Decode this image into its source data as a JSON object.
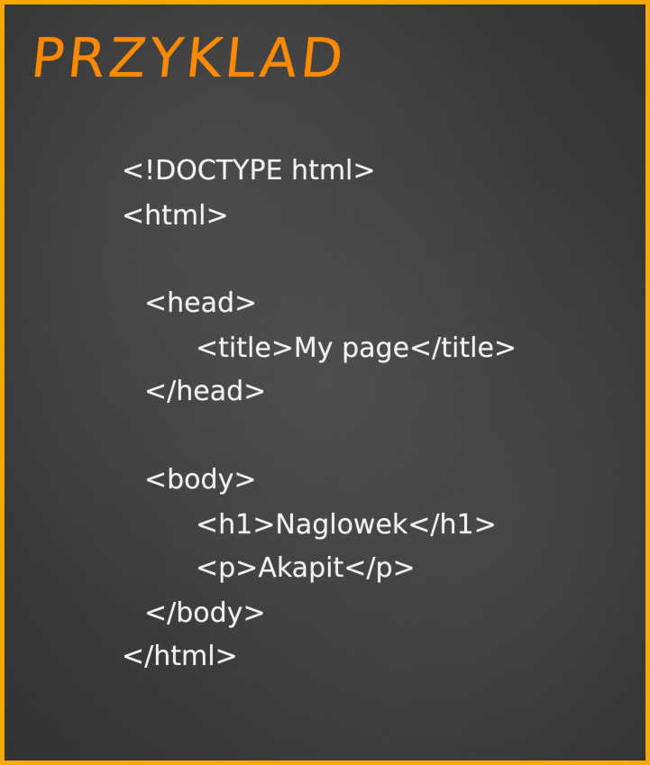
{
  "title": "PRZYKLAD",
  "colors": {
    "border": "#f5a800",
    "title": "#ff8a00",
    "chalk": "#f2f2f2",
    "board": "#333333"
  },
  "code": {
    "doctype": "<!DOCTYPE html>",
    "html_open": "<html>",
    "head_open": "<head>",
    "title_tag": "<title>My page</title>",
    "head_close": "</head>",
    "body_open": "<body>",
    "h1_tag": "<h1>Naglowek</h1>",
    "p_tag": "<p>Akapit</p>",
    "body_close": "</body>",
    "html_close": "</html>"
  }
}
